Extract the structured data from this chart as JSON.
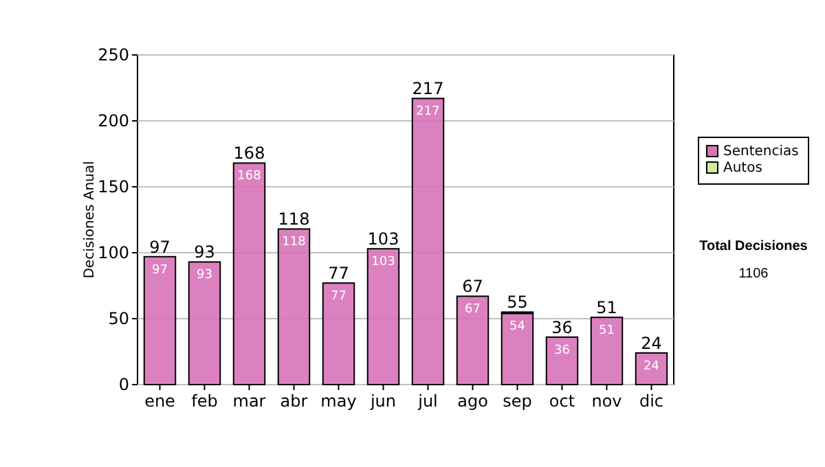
{
  "chart_data": {
    "type": "bar",
    "stacked": true,
    "ylabel": "Decisiones Anual",
    "categories": [
      "ene",
      "feb",
      "mar",
      "abr",
      "may",
      "jun",
      "jul",
      "ago",
      "sep",
      "oct",
      "nov",
      "dic"
    ],
    "series": [
      {
        "name": "Sentencias",
        "color": "#d873b8",
        "values": [
          97,
          93,
          168,
          118,
          77,
          103,
          217,
          67,
          54,
          36,
          51,
          24
        ],
        "value_labels": [
          "97",
          "93",
          "168",
          "118",
          "77",
          "103",
          "217",
          "67",
          "54",
          "36",
          "51",
          "24"
        ]
      },
      {
        "name": "Autos",
        "color": "#d4e8a0",
        "values": [
          0,
          0,
          0,
          0,
          0,
          0,
          0,
          0,
          1,
          0,
          0,
          0
        ]
      }
    ],
    "totals": [
      "97",
      "93",
      "168",
      "118",
      "77",
      "103",
      "217",
      "67",
      "55",
      "36",
      "51",
      "24"
    ],
    "ylim": [
      0,
      250
    ],
    "yticks": [
      0,
      50,
      100,
      150,
      200,
      250
    ],
    "grid": "y",
    "legend": "right",
    "annotations": [
      "Total Decisiones",
      "1106"
    ]
  }
}
